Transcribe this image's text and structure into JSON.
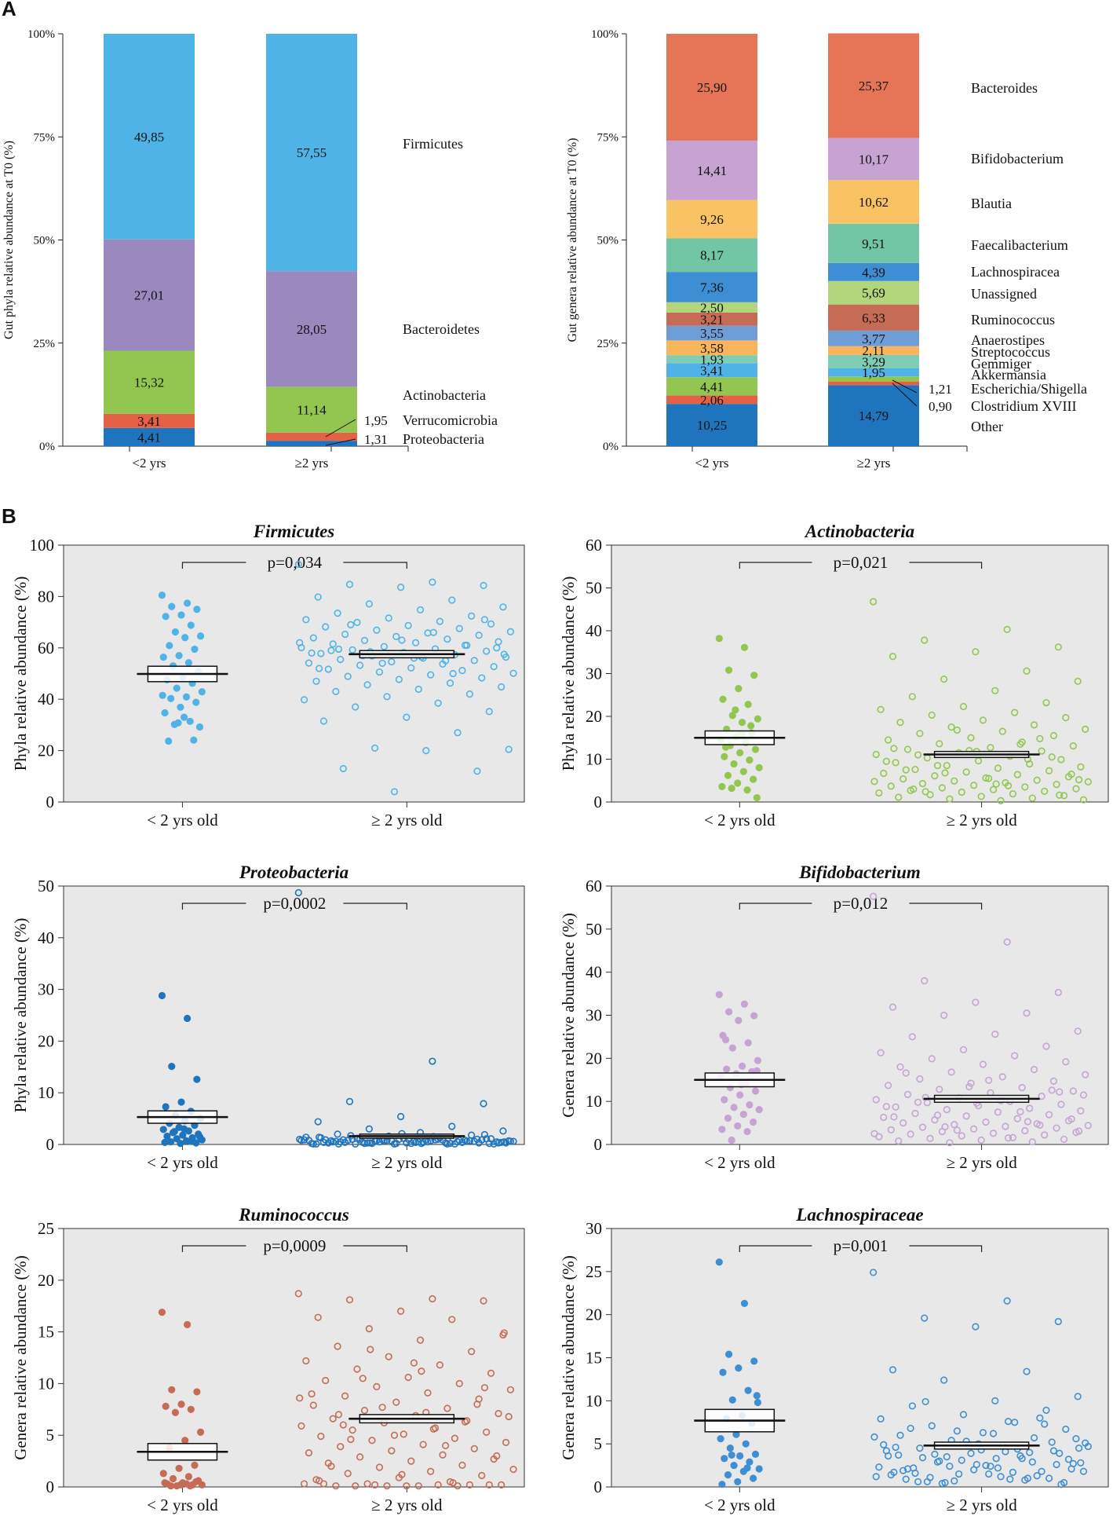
{
  "panel_labels": [
    "A",
    "B"
  ],
  "chart_data": [
    {
      "type": "bar",
      "subtype": "stacked-100",
      "ylabel": "Gut phyla relative abundance at T0 (%)",
      "yticks": [
        "0%",
        "25%",
        "50%",
        "75%",
        "100%"
      ],
      "categories": [
        "<2 yrs",
        "≥2 yrs"
      ],
      "series": [
        {
          "name": "Proteobacteria",
          "color": "#1e74bd",
          "values": [
            4.41,
            1.31
          ],
          "labels": [
            "4,41",
            ""
          ]
        },
        {
          "name": "Verrucomicrobia",
          "color": "#e46047",
          "values": [
            3.41,
            1.95
          ],
          "labels": [
            "3,41",
            ""
          ]
        },
        {
          "name": "Actinobacteria",
          "color": "#93c650",
          "values": [
            15.32,
            11.14
          ],
          "labels": [
            "15,32",
            "11,14"
          ]
        },
        {
          "name": "Bacteroidetes",
          "color": "#9b88bf",
          "values": [
            27.01,
            28.05
          ],
          "labels": [
            "27,01",
            "28,05"
          ]
        },
        {
          "name": "Firmicutes",
          "color": "#4fb3e7",
          "values": [
            49.85,
            57.55
          ],
          "labels": [
            "49,85",
            "57,55"
          ]
        }
      ],
      "legend_labels": [
        "Firmicutes",
        "Bacteroidetes",
        "Actinobacteria",
        "Verrucomicrobia",
        "Proteobacteria"
      ],
      "callouts": [
        "1,95",
        "1,31"
      ]
    },
    {
      "type": "bar",
      "subtype": "stacked-100",
      "ylabel": "Gut genera relative abundance at T0 (%)",
      "yticks": [
        "0%",
        "25%",
        "50%",
        "75%",
        "100%"
      ],
      "categories": [
        "<2 yrs",
        "≥2 yrs"
      ],
      "series": [
        {
          "name": "Other",
          "color": "#1e74bd",
          "values": [
            10.25,
            14.79
          ],
          "labels": [
            "10,25",
            "14,79"
          ]
        },
        {
          "name": "Clostridium XVIII",
          "color": "#e46047",
          "values": [
            2.06,
            0.9
          ],
          "labels": [
            "2,06",
            ""
          ]
        },
        {
          "name": "Escherichia/Shigella",
          "color": "#93c650",
          "values": [
            4.41,
            1.21
          ],
          "labels": [
            "4,41",
            ""
          ]
        },
        {
          "name": "Akkermansia",
          "color": "#4fb3e7",
          "values": [
            3.41,
            1.95
          ],
          "labels": [
            "3,41",
            "1,95"
          ]
        },
        {
          "name": "Gemmiger",
          "color": "#7fcdb4",
          "values": [
            1.93,
            3.29
          ],
          "labels": [
            "1,93",
            "3,29"
          ]
        },
        {
          "name": "Streptococcus",
          "color": "#f8b55b",
          "values": [
            3.58,
            2.11
          ],
          "labels": [
            "3,58",
            "2,11"
          ]
        },
        {
          "name": "Anaerostipes",
          "color": "#6f9ed7",
          "values": [
            3.55,
            3.77
          ],
          "labels": [
            "3,55",
            "3,77"
          ]
        },
        {
          "name": "Ruminococcus",
          "color": "#c66b55",
          "values": [
            3.21,
            6.33
          ],
          "labels": [
            "3,21",
            "6,33"
          ]
        },
        {
          "name": "Unassigned",
          "color": "#b3d57c",
          "values": [
            2.5,
            5.69
          ],
          "labels": [
            "2,50",
            "5,69"
          ]
        },
        {
          "name": "Lachnospiracea",
          "color": "#3e8ed3",
          "values": [
            7.36,
            4.39
          ],
          "labels": [
            "7,36",
            "4,39"
          ]
        },
        {
          "name": "Faecalibacterium",
          "color": "#72c6a6",
          "values": [
            8.17,
            9.51
          ],
          "labels": [
            "8,17",
            "9,51"
          ]
        },
        {
          "name": "Blautia",
          "color": "#f9c262",
          "values": [
            9.26,
            10.62
          ],
          "labels": [
            "9,26",
            "10,62"
          ]
        },
        {
          "name": "Bifidobacterium",
          "color": "#c6a3d3",
          "values": [
            14.41,
            10.17
          ],
          "labels": [
            "14,41",
            "10,17"
          ]
        },
        {
          "name": "Bacteroides",
          "color": "#e57556",
          "values": [
            25.9,
            25.37
          ],
          "labels": [
            "25,90",
            "25,37"
          ]
        }
      ],
      "legend_labels": [
        "Bacteroides",
        "Bifidobacterium",
        "Blautia",
        "Faecalibacterium",
        "Lachnospiracea",
        "Unassigned",
        "Ruminococcus",
        "Anaerostipes",
        "Streptococcus",
        "Gemmiger",
        "Akkermansia",
        "Escherichia/Shigella",
        "Clostridium XVIII",
        "Other"
      ],
      "callouts": [
        "1,21",
        "0,90"
      ]
    },
    {
      "type": "scatter",
      "title": "Firmicutes",
      "ylabel": "Phyla relative abundance (%)",
      "ylim": [
        0,
        100
      ],
      "yticks": [
        0,
        20,
        40,
        60,
        80,
        100
      ],
      "categories": [
        "< 2 yrs old",
        "≥ 2 yrs old"
      ],
      "p_value": "p=0,034",
      "color": "#4fb3e7",
      "means": [
        49.85,
        57.55
      ],
      "sems": [
        3.0,
        1.4
      ],
      "group1": [
        80.5,
        77.4,
        76.1,
        75.0,
        72.8,
        72.2,
        68.8,
        66.2,
        64.6,
        64.0,
        60.9,
        59.5,
        57.0,
        56.4,
        54.2,
        53.0,
        50.8,
        48.5,
        47.6,
        46.2,
        44.3,
        42.9,
        40.9,
        40.3,
        38.8,
        36.9,
        34.7,
        31.4,
        30.2,
        29.2,
        33.0,
        23.7,
        24.1,
        30.8,
        41.5
      ],
      "group2": [
        92.5,
        85.6,
        84.7,
        84.3,
        83.6,
        79.8,
        78.6,
        77.1,
        75.9,
        74.8,
        73.5,
        72.4,
        71.6,
        71.0,
        70.3,
        69.9,
        69.3,
        68.7,
        68.2,
        67.5,
        66.9,
        66.3,
        65.8,
        65.3,
        64.9,
        64.4,
        63.9,
        63.4,
        62.9,
        62.4,
        62.0,
        61.5,
        61.0,
        60.5,
        60.1,
        59.6,
        59.2,
        58.7,
        58.2,
        57.8,
        57.3,
        56.9,
        56.4,
        56.0,
        55.5,
        55.1,
        54.6,
        54.1,
        53.7,
        53.2,
        52.7,
        52.2,
        51.7,
        51.2,
        50.6,
        50.1,
        49.5,
        48.9,
        48.3,
        47.7,
        47.0,
        46.3,
        45.6,
        44.8,
        43.9,
        43.0,
        42.0,
        41.0,
        39.8,
        38.5,
        37.0,
        35.2,
        33.0,
        31.5,
        27.0,
        21.0,
        20.5,
        20.0,
        13.0,
        12.0,
        4.0,
        58.0,
        55.0,
        57.0,
        60.0,
        56.0,
        59.0,
        61.0,
        54.0,
        62.0,
        66.0,
        69.0,
        71.0,
        63.0,
        52.0,
        50.0,
        58.5,
        57.5,
        56.5,
        59.5
      ]
    },
    {
      "type": "scatter",
      "title": "Actinobacteria",
      "ylabel": "Phyla relative abundance (%)",
      "ylim": [
        0,
        60
      ],
      "yticks": [
        0,
        10,
        20,
        30,
        40,
        50,
        60
      ],
      "categories": [
        "< 2 yrs old",
        "≥ 2 yrs old"
      ],
      "p_value": "p=0,021",
      "color": "#93c650",
      "means": [
        15.0,
        11.1
      ],
      "sems": [
        1.6,
        0.7
      ],
      "group1": [
        38.2,
        36.1,
        30.8,
        29.6,
        26.5,
        24.0,
        22.8,
        20.2,
        19.4,
        18.6,
        17.0,
        16.1,
        15.3,
        14.6,
        13.9,
        13.2,
        12.3,
        11.5,
        10.6,
        9.8,
        8.9,
        8.0,
        7.1,
        6.2,
        5.3,
        4.4,
        3.6,
        2.8,
        3.2,
        1.0,
        15.8,
        12.8,
        17.8,
        21.5
      ],
      "group2": [
        46.8,
        40.3,
        37.8,
        36.2,
        35.1,
        34.0,
        30.6,
        28.7,
        28.2,
        26.0,
        24.6,
        23.2,
        22.3,
        21.6,
        20.9,
        20.3,
        19.7,
        19.1,
        18.6,
        18.0,
        17.5,
        17.0,
        16.5,
        16.0,
        15.5,
        15.0,
        14.5,
        14.0,
        13.6,
        13.1,
        12.7,
        12.3,
        11.9,
        11.5,
        11.1,
        10.7,
        10.3,
        9.9,
        9.6,
        9.2,
        8.9,
        8.5,
        8.2,
        7.9,
        7.6,
        7.3,
        7.0,
        6.7,
        6.4,
        6.1,
        5.9,
        5.6,
        5.4,
        5.1,
        4.9,
        4.7,
        4.5,
        4.3,
        4.1,
        3.9,
        3.7,
        3.5,
        3.3,
        3.1,
        2.9,
        2.7,
        2.5,
        2.3,
        2.1,
        1.9,
        1.7,
        1.5,
        1.3,
        1.1,
        0.9,
        0.7,
        0.5,
        0.3,
        11.0,
        10.5,
        12.0,
        9.5,
        13.5,
        8.5,
        6.5,
        5.5,
        7.5,
        14.8,
        16.8,
        4.8,
        3.8,
        2.4,
        1.6,
        11.8,
        12.5,
        10.0,
        6.8,
        5.2,
        4.2,
        3.0
      ]
    },
    {
      "type": "scatter",
      "title": "Proteobacteria",
      "ylabel": "Phyla relative abundance (%)",
      "ylim": [
        0,
        50
      ],
      "yticks": [
        0,
        10,
        20,
        30,
        40,
        50
      ],
      "categories": [
        "< 2 yrs old",
        "≥ 2 yrs old"
      ],
      "p_value": "p=0,0002",
      "color": "#1e74bd",
      "means": [
        5.3,
        1.6
      ],
      "sems": [
        1.2,
        0.4
      ],
      "group1": [
        28.8,
        24.4,
        15.1,
        12.6,
        8.2,
        7.3,
        6.4,
        5.7,
        5.0,
        4.6,
        4.1,
        3.7,
        3.3,
        2.9,
        2.6,
        2.3,
        2.0,
        1.8,
        1.6,
        1.3,
        1.1,
        0.9,
        0.7,
        0.5,
        0.3,
        0.2,
        0.4,
        0.6,
        2.5,
        1.5,
        3.0
      ],
      "group2": [
        48.7,
        16.1,
        8.3,
        7.9,
        5.4,
        4.4,
        3.5,
        3.0,
        2.6,
        2.3,
        2.0,
        1.8,
        1.6,
        1.4,
        1.3,
        1.2,
        1.1,
        1.0,
        0.9,
        0.8,
        0.7,
        0.6,
        0.5,
        0.4,
        0.3,
        0.2,
        0.1,
        0.1,
        0.2,
        0.3,
        0.4,
        0.5,
        0.6,
        0.7,
        0.8,
        0.9,
        1.0,
        1.1,
        1.2,
        1.3,
        0.1,
        0.2,
        0.3,
        0.4,
        0.5,
        0.6,
        0.7,
        0.8,
        0.9,
        1.0,
        0.1,
        0.2,
        0.3,
        0.4,
        0.5,
        0.6,
        0.7,
        0.8,
        0.9,
        1.0,
        0.1,
        0.2,
        0.3,
        0.4,
        0.5,
        0.6,
        0.7,
        0.8,
        0.9,
        1.0,
        0.1,
        0.2,
        0.3,
        0.4,
        0.5,
        0.6,
        0.7,
        0.8,
        0.9,
        1.0,
        0.1,
        0.2,
        0.3,
        0.4,
        0.5,
        0.6,
        0.7,
        0.8,
        0.9,
        1.0,
        1.5,
        1.7,
        1.9,
        2.1,
        1.4,
        1.2,
        0.3,
        0.5,
        0.2,
        0.1
      ]
    },
    {
      "type": "scatter",
      "title": "Bifidobacterium",
      "ylabel": "Genera relative abundance (%)",
      "ylim": [
        0,
        60
      ],
      "yticks": [
        0,
        10,
        20,
        30,
        40,
        50,
        60
      ],
      "categories": [
        "< 2 yrs old",
        "≥ 2 yrs old"
      ],
      "p_value": "p=0,012",
      "color": "#c6a3d3",
      "means": [
        15.0,
        10.6
      ],
      "sems": [
        1.6,
        0.8
      ],
      "group1": [
        34.8,
        32.6,
        30.8,
        29.9,
        28.8,
        25.3,
        23.6,
        22.4,
        19.5,
        18.2,
        17.5,
        16.9,
        16.4,
        15.8,
        14.1,
        13.2,
        12.4,
        11.5,
        10.4,
        9.2,
        8.6,
        8.1,
        7.0,
        6.1,
        5.2,
        4.3,
        3.5,
        3.0,
        1.0,
        17.1,
        13.9,
        24.3
      ],
      "group2": [
        57.6,
        47.0,
        38.0,
        35.3,
        33.0,
        31.9,
        30.5,
        30.0,
        26.3,
        25.6,
        25.0,
        22.8,
        22.0,
        21.3,
        20.6,
        19.9,
        19.2,
        18.6,
        18.0,
        17.4,
        16.8,
        16.2,
        15.7,
        15.2,
        14.7,
        14.2,
        13.7,
        13.2,
        12.8,
        12.4,
        12.0,
        11.6,
        11.2,
        10.8,
        10.4,
        10.0,
        9.7,
        9.3,
        9.0,
        8.7,
        8.4,
        8.1,
        7.8,
        7.5,
        7.2,
        6.9,
        6.6,
        6.3,
        6.0,
        5.7,
        5.5,
        5.2,
        5.0,
        4.8,
        4.6,
        4.4,
        4.2,
        4.0,
        3.8,
        3.6,
        3.4,
        3.2,
        3.0,
        2.8,
        2.6,
        2.4,
        2.2,
        2.0,
        1.8,
        1.6,
        1.4,
        1.2,
        1.0,
        0.8,
        0.6,
        0.4,
        11.5,
        10.2,
        9.8,
        12.6,
        13.4,
        8.8,
        7.6,
        6.8,
        5.9,
        14.9,
        16.6,
        4.5,
        3.3,
        2.5,
        1.5,
        10.9,
        12.2,
        9.6,
        6.4,
        5.3,
        4.1,
        3.1
      ]
    },
    {
      "type": "scatter",
      "title": "Ruminococcus",
      "ylabel": "Genera relative abundance (%)",
      "ylim": [
        0,
        25
      ],
      "yticks": [
        0,
        5,
        10,
        15,
        20,
        25
      ],
      "categories": [
        "< 2 yrs old",
        "≥ 2 yrs old"
      ],
      "p_value": "p=0,0009",
      "color": "#c66b55",
      "means": [
        3.4,
        6.6
      ],
      "sems": [
        0.8,
        0.4
      ],
      "group1": [
        16.9,
        15.7,
        9.4,
        9.2,
        8.0,
        7.8,
        7.5,
        7.2,
        5.3,
        4.5,
        3.8,
        2.1,
        1.8,
        1.3,
        1.0,
        0.8,
        0.6,
        0.4,
        0.3,
        0.2,
        0.1,
        0.2,
        0.3,
        0.1,
        0.5,
        0.2,
        0.4,
        0.1
      ],
      "group2": [
        18.7,
        18.2,
        18.1,
        18.0,
        17.0,
        16.4,
        16.2,
        15.3,
        14.7,
        14.2,
        13.6,
        13.1,
        12.6,
        12.2,
        11.8,
        11.4,
        11.0,
        10.6,
        10.3,
        10.0,
        9.7,
        9.4,
        9.1,
        8.8,
        8.5,
        8.2,
        7.9,
        7.6,
        7.4,
        7.1,
        6.9,
        6.6,
        6.4,
        6.2,
        5.9,
        5.7,
        5.5,
        5.3,
        5.1,
        4.9,
        4.7,
        4.5,
        4.3,
        4.1,
        3.9,
        3.7,
        3.5,
        3.3,
        3.1,
        2.9,
        2.7,
        2.5,
        2.3,
        2.1,
        1.9,
        1.7,
        1.5,
        1.3,
        1.1,
        0.9,
        0.7,
        0.5,
        0.3,
        0.2,
        0.1,
        0.1,
        0.2,
        0.1,
        0.3,
        0.2,
        0.1,
        0.2,
        0.1,
        0.3,
        0.1,
        0.2,
        6.8,
        7.2,
        6.0,
        8.0,
        5.0,
        9.0,
        4.0,
        10.5,
        3.0,
        12.0,
        2.0,
        6.3,
        7.7,
        8.6,
        5.6,
        4.6,
        9.6,
        1.2,
        0.6,
        0.4,
        13.3,
        14.9,
        11.2,
        7.0
      ]
    },
    {
      "type": "scatter",
      "title": "Lachnospiraceae",
      "ylabel": "Genera relative abundance (%)",
      "ylim": [
        0,
        30
      ],
      "yticks": [
        0,
        5,
        10,
        15,
        20,
        25,
        30
      ],
      "categories": [
        "< 2 yrs old",
        "≥ 2 yrs old"
      ],
      "p_value": "p=0,001",
      "color": "#3e8ed3",
      "means": [
        7.7,
        4.8
      ],
      "sems": [
        1.3,
        0.4
      ],
      "group1": [
        26.1,
        21.3,
        15.4,
        14.6,
        13.8,
        13.3,
        11.2,
        10.1,
        9.8,
        8.3,
        7.9,
        7.4,
        6.1,
        5.6,
        5.0,
        4.5,
        3.8,
        3.6,
        3.3,
        2.9,
        2.5,
        2.1,
        1.8,
        1.4,
        1.0,
        0.6,
        0.3,
        2.2,
        3.7,
        10.6
      ],
      "group2": [
        24.9,
        21.6,
        19.6,
        19.2,
        18.6,
        13.6,
        13.4,
        12.4,
        10.5,
        10.0,
        9.4,
        8.9,
        8.4,
        7.9,
        7.5,
        7.1,
        6.7,
        6.3,
        6.0,
        5.7,
        5.4,
        5.1,
        4.8,
        4.5,
        4.2,
        3.9,
        3.6,
        3.3,
        3.0,
        2.7,
        2.4,
        2.1,
        1.8,
        1.5,
        1.2,
        0.9,
        0.6,
        0.3,
        5.0,
        4.6,
        4.0,
        3.5,
        2.8,
        2.2,
        1.6,
        1.0,
        5.3,
        4.9,
        4.4,
        3.8,
        3.2,
        2.5,
        1.9,
        1.3,
        0.7,
        4.7,
        4.1,
        3.4,
        2.6,
        2.0,
        1.4,
        0.8,
        0.4,
        5.6,
        6.2,
        6.8,
        7.3,
        3.1,
        2.3,
        1.7,
        1.1,
        0.5,
        4.3,
        3.7,
        2.9,
        2.4,
        1.8,
        1.2,
        0.6,
        5.2,
        4.8,
        4.2,
        3.6,
        2.9,
        2.1,
        1.5,
        0.9,
        8.0,
        6.5,
        5.8,
        7.6,
        9.9,
        3.9,
        2.6,
        1.7,
        1.0,
        0.5,
        4.5,
        3.3,
        2.2
      ]
    }
  ]
}
